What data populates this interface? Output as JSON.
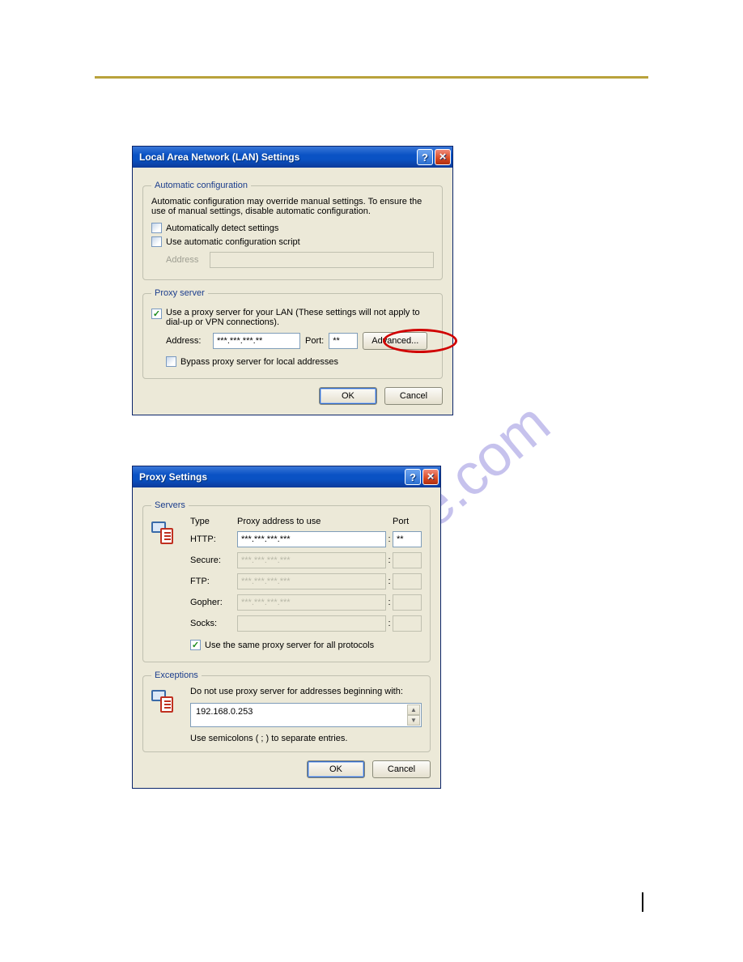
{
  "page": {
    "rule_color": "#b9a23c",
    "page_number": ""
  },
  "watermark": "manualshive.com",
  "lan_dialog": {
    "title": "Local Area Network (LAN) Settings",
    "auto_config": {
      "legend": "Automatic configuration",
      "desc": "Automatic configuration may override manual settings.  To ensure the use of manual settings, disable automatic configuration.",
      "auto_detect_label": "Automatically detect settings",
      "use_script_label": "Use automatic configuration script",
      "address_label": "Address"
    },
    "proxy": {
      "legend": "Proxy server",
      "use_proxy_label": "Use a proxy server for your LAN (These settings will not apply to dial-up or VPN connections).",
      "address_label": "Address:",
      "address_value": "***.***.***.**",
      "port_label": "Port:",
      "port_value": "**",
      "advanced_label": "Advanced...",
      "bypass_label": "Bypass proxy server for local addresses"
    },
    "buttons": {
      "ok": "OK",
      "cancel": "Cancel"
    }
  },
  "proxy_dialog": {
    "title": "Proxy Settings",
    "servers": {
      "legend": "Servers",
      "type_hdr": "Type",
      "addr_hdr": "Proxy address to use",
      "port_hdr": "Port",
      "rows": [
        {
          "type": "HTTP:",
          "addr": "***.***.***.***",
          "port": "**",
          "enabled": true
        },
        {
          "type": "Secure:",
          "addr": "***.***.***.***",
          "port": "",
          "enabled": false
        },
        {
          "type": "FTP:",
          "addr": "***.***.***.***",
          "port": "",
          "enabled": false
        },
        {
          "type": "Gopher:",
          "addr": "***.***.***.***",
          "port": "",
          "enabled": false
        },
        {
          "type": "Socks:",
          "addr": "",
          "port": "",
          "enabled": false
        }
      ],
      "same_proxy_label": "Use the same proxy server for all protocols"
    },
    "exceptions": {
      "legend": "Exceptions",
      "desc": "Do not use proxy server for addresses beginning with:",
      "value": "192.168.0.253",
      "hint": "Use semicolons ( ; ) to separate entries."
    },
    "buttons": {
      "ok": "OK",
      "cancel": "Cancel"
    }
  }
}
